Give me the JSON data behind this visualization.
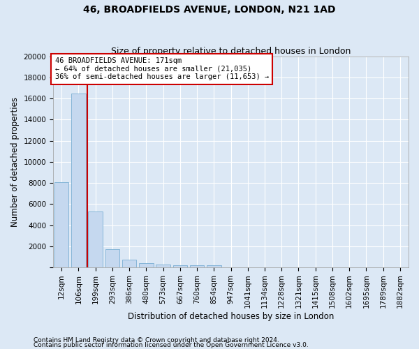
{
  "title": "46, BROADFIELDS AVENUE, LONDON, N21 1AD",
  "subtitle": "Size of property relative to detached houses in London",
  "xlabel": "Distribution of detached houses by size in London",
  "ylabel": "Number of detached properties",
  "footnote1": "Contains HM Land Registry data © Crown copyright and database right 2024.",
  "footnote2": "Contains public sector information licensed under the Open Government Licence v3.0.",
  "annotation_line1": "46 BROADFIELDS AVENUE: 171sqm",
  "annotation_line2": "← 64% of detached houses are smaller (21,035)",
  "annotation_line3": "36% of semi-detached houses are larger (11,653) →",
  "bar_labels": [
    "12sqm",
    "106sqm",
    "199sqm",
    "293sqm",
    "386sqm",
    "480sqm",
    "573sqm",
    "667sqm",
    "760sqm",
    "854sqm",
    "947sqm",
    "1041sqm",
    "1134sqm",
    "1228sqm",
    "1321sqm",
    "1415sqm",
    "1508sqm",
    "1602sqm",
    "1695sqm",
    "1789sqm",
    "1882sqm"
  ],
  "bar_values": [
    8100,
    16500,
    5300,
    1750,
    700,
    380,
    280,
    210,
    190,
    170,
    0,
    0,
    0,
    0,
    0,
    0,
    0,
    0,
    0,
    0,
    0
  ],
  "bar_color": "#c5d8ef",
  "bar_edge_color": "#7aafd4",
  "annotation_box_color": "#ffffff",
  "annotation_box_edge_color": "#cc0000",
  "marker_line_color": "#cc0000",
  "ylim": [
    0,
    20000
  ],
  "yticks": [
    0,
    2000,
    4000,
    6000,
    8000,
    10000,
    12000,
    14000,
    16000,
    18000,
    20000
  ],
  "background_color": "#dce8f5",
  "axes_background_color": "#dce8f5",
  "grid_color": "#ffffff",
  "title_fontsize": 10,
  "subtitle_fontsize": 9,
  "xlabel_fontsize": 8.5,
  "ylabel_fontsize": 8.5,
  "tick_fontsize": 7.5,
  "annotation_fontsize": 7.5,
  "footnote_fontsize": 6.5
}
